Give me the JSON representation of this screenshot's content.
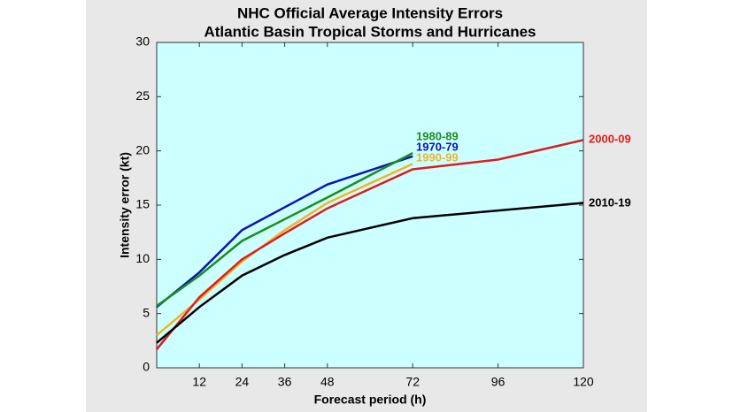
{
  "chart_data": {
    "type": "line",
    "title": "NHC Official Average Intensity Errors",
    "subtitle": "Atlantic Basin Tropical Storms and Hurricanes",
    "x_label": "Forecast period (h)",
    "y_label": "Intensity error (kt)",
    "x": [
      0,
      12,
      24,
      36,
      48,
      72,
      96,
      120
    ],
    "series": [
      {
        "name": "1970-79",
        "color": "#0a14b4",
        "values": [
          5.6,
          8.8,
          12.7,
          14.8,
          16.9,
          19.5,
          null,
          null
        ]
      },
      {
        "name": "1980-89",
        "color": "#1e8c1e",
        "values": [
          5.7,
          8.5,
          11.7,
          13.7,
          15.7,
          19.8,
          null,
          null
        ]
      },
      {
        "name": "1990-99",
        "color": "#f0b428",
        "values": [
          3.0,
          6.3,
          9.8,
          12.7,
          15.2,
          18.8,
          null,
          null
        ]
      },
      {
        "name": "2000-09",
        "color": "#dc1e1e",
        "values": [
          1.7,
          6.5,
          10.0,
          12.4,
          14.7,
          18.3,
          19.2,
          21.0
        ]
      },
      {
        "name": "2010-19",
        "color": "#000000",
        "values": [
          2.3,
          5.6,
          8.5,
          10.4,
          12.0,
          13.8,
          14.5,
          15.2
        ]
      }
    ],
    "xlim": [
      0,
      120
    ],
    "xticks": [
      12,
      24,
      36,
      48,
      72,
      96,
      120
    ],
    "ylim": [
      0,
      30
    ],
    "yticks": [
      0,
      5,
      10,
      15,
      20,
      25,
      30
    ],
    "background": "#ccffff"
  }
}
